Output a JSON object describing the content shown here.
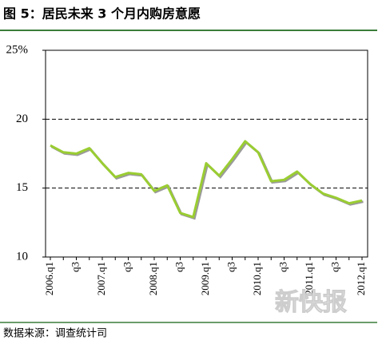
{
  "chart_data": {
    "type": "line",
    "title": "图 5：居民未来 3 个月内购房意愿",
    "source": "数据来源：调查统计司",
    "watermark": "新快报",
    "categories": [
      "2006.q1",
      null,
      "q3",
      null,
      "2007.q1",
      null,
      "q3",
      null,
      "2008.q1",
      null,
      "q3",
      null,
      "2009.q1",
      null,
      "q3",
      null,
      "2010.q1",
      null,
      "q3",
      null,
      "2011.q1",
      null,
      "q3",
      null,
      "2012.q1"
    ],
    "series": [
      {
        "color": "#9acd32",
        "values": [
          18.1,
          17.6,
          17.5,
          17.9,
          16.8,
          15.8,
          16.1,
          16.0,
          14.8,
          15.2,
          13.2,
          12.9,
          16.8,
          15.9,
          17.1,
          18.4,
          17.6,
          15.5,
          15.6,
          16.2,
          15.3,
          14.6,
          14.3,
          13.9,
          14.1
        ]
      }
    ],
    "ylim": [
      10,
      25
    ],
    "yticks": [
      10,
      15,
      20,
      {
        "value": 25,
        "label": "25%"
      }
    ],
    "grid": [
      15,
      20
    ]
  }
}
